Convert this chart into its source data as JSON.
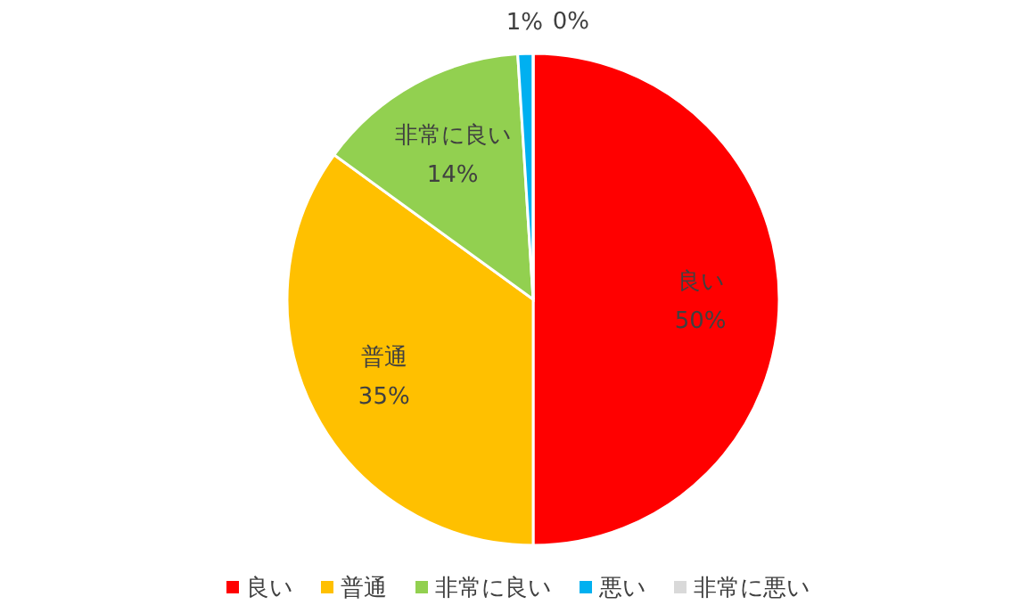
{
  "chart_data": {
    "type": "pie",
    "categories": [
      "良い",
      "普通",
      "非常に良い",
      "悪い",
      "非常に悪い"
    ],
    "values": [
      50,
      35,
      14,
      1,
      0
    ],
    "value_labels": [
      "50%",
      "35%",
      "14%",
      "1%",
      "0%"
    ],
    "colors": [
      "#ff0000",
      "#ffc000",
      "#92d050",
      "#00b0f0",
      "#d9d9d9"
    ],
    "legend": "bottom"
  }
}
